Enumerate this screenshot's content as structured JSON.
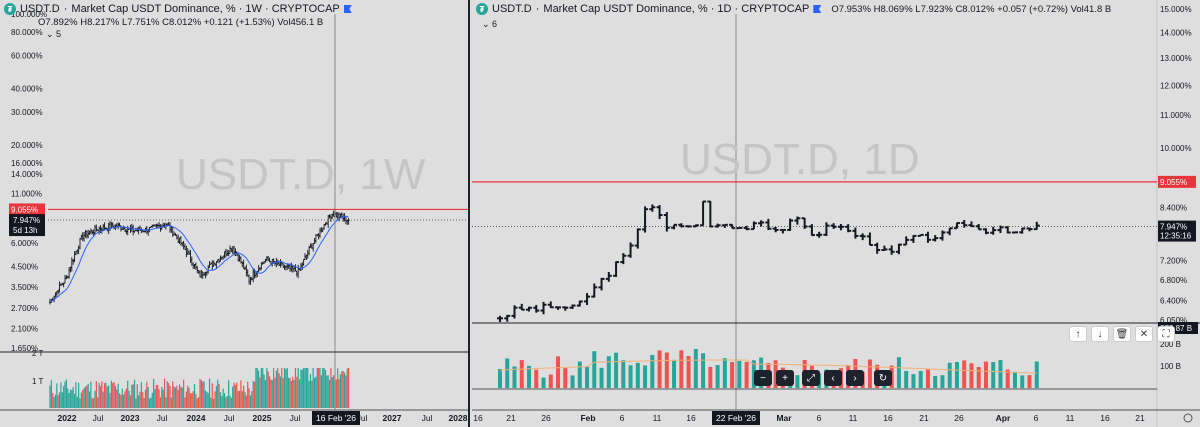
{
  "colors": {
    "bg": "#dedede",
    "up": "#26a69a",
    "down": "#ef5350",
    "bar": "#131722",
    "resistance": "#e8343b",
    "ma": "#2962ff",
    "vol_ma": "#f0b27a"
  },
  "left": {
    "symbol": "USDT.D",
    "title": "Market Cap USDT Dominance, % · 1W · CRYPTOCAP",
    "ohlc": "O7.892%  H8.217%  L7.751%  C8.012%  +0.121 (+1.53%)  Vol456.1 B",
    "indicator_label": "5",
    "watermark": "USDT.D, 1W",
    "price_axis": [
      "100.000%",
      "80.000%",
      "60.000%",
      "40.000%",
      "30.000%",
      "20.000%",
      "16.000%",
      "14.000%",
      "11.000%",
      "9.055%",
      "7.947%",
      "6.000%",
      "4.500%",
      "3.500%",
      "2.700%",
      "2.100%",
      "1.650%"
    ],
    "resistance_label": "9.055%",
    "last_price_label": "7.947%",
    "countdown": "5d 13h",
    "vol_axis": [
      "2 T",
      "1 T"
    ],
    "time_axis": [
      "2022",
      "Jul",
      "2023",
      "Jul",
      "2024",
      "Jul",
      "2025",
      "Jul",
      "2026",
      "16 Feb '26",
      "Jul",
      "2027",
      "Jul",
      "2028"
    ],
    "crosshair_date": "16 Feb '26"
  },
  "right": {
    "symbol": "USDT.D",
    "title": "Market Cap USDT Dominance, % · 1D · CRYPTOCAP",
    "ohlc": "O7.953%  H8.069%  L7.923%  C8.012%  +0.057 (+0.72%)  Vol41.8 B",
    "indicator_label": "6",
    "watermark": "USDT.D, 1D",
    "price_axis": [
      "15.000%",
      "14.000%",
      "13.000%",
      "12.000%",
      "11.000%",
      "10.000%",
      "9.055%",
      "8.400%",
      "7.947%",
      "7.200%",
      "6.800%",
      "6.400%",
      "6.050%"
    ],
    "resistance_label": "9.055%",
    "last_price_label": "7.947%",
    "countdown": "12:35:16",
    "vol_axis": [
      "273.87 B",
      "200 B",
      "100 B"
    ],
    "time_axis": [
      "16",
      "21",
      "26",
      "Feb",
      "6",
      "11",
      "16",
      "22 Feb '26",
      "Mar",
      "6",
      "11",
      "16",
      "21",
      "26",
      "Apr",
      "6",
      "11",
      "16",
      "21"
    ],
    "crosshair_date": "22 Feb '26",
    "toolbar_bottom": [
      "−",
      "+",
      "⤢",
      "‹",
      "›",
      "↻"
    ],
    "toolbar_right": [
      "↑",
      "↓",
      "🗑",
      "✕",
      "⛶"
    ]
  },
  "chart_data": [
    {
      "type": "bar",
      "title": "USDT.D, 1W",
      "ylabel": "%",
      "x_range": [
        "2022",
        "2028"
      ],
      "ylim": [
        1.65,
        100
      ],
      "scale": "log",
      "resistance": 9.055,
      "last": 7.947,
      "series": [
        {
          "name": "USDT.D",
          "x": [
            "2021-12",
            "2022-03",
            "2022-06",
            "2022-09",
            "2022-12",
            "2023-03",
            "2023-06",
            "2023-09",
            "2023-12",
            "2024-03",
            "2024-06",
            "2024-09",
            "2024-12",
            "2025-03",
            "2025-06",
            "2025-09",
            "2025-12",
            "2026-02",
            "2026-03"
          ],
          "values": [
            2.9,
            3.9,
            6.6,
            7.2,
            7.4,
            7.0,
            7.1,
            7.6,
            5.8,
            4.0,
            4.8,
            5.7,
            3.8,
            4.9,
            4.5,
            4.2,
            6.3,
            8.6,
            7.947
          ]
        }
      ]
    },
    {
      "type": "bar",
      "title": "USDT.D, 1D",
      "ylabel": "%",
      "x_range": [
        "2026-01-16",
        "2026-04-21"
      ],
      "ylim": [
        6.05,
        15.0
      ],
      "scale": "log",
      "resistance": 9.055,
      "last": 7.947,
      "series": [
        {
          "name": "USDT.D",
          "x": [
            "01-17",
            "01-20",
            "01-23",
            "01-26",
            "01-29",
            "02-01",
            "02-03",
            "02-05",
            "02-06",
            "02-08",
            "02-11",
            "02-14",
            "02-17",
            "02-20",
            "02-23",
            "02-26",
            "03-01",
            "03-04",
            "03-07",
            "03-10",
            "03-13",
            "03-16",
            "03-19",
            "03-22",
            "03-25",
            "03-28",
            "03-31",
            "04-03",
            "04-06",
            "04-08"
          ],
          "values": [
            6.1,
            6.25,
            6.25,
            6.3,
            6.25,
            6.6,
            7.0,
            7.4,
            8.6,
            7.9,
            8.0,
            7.9,
            8.0,
            7.9,
            8.1,
            7.85,
            8.1,
            7.75,
            8.0,
            7.8,
            7.6,
            7.3,
            7.65,
            7.7,
            7.75,
            8.05,
            7.85,
            7.95,
            7.8,
            7.947
          ]
        }
      ]
    }
  ]
}
